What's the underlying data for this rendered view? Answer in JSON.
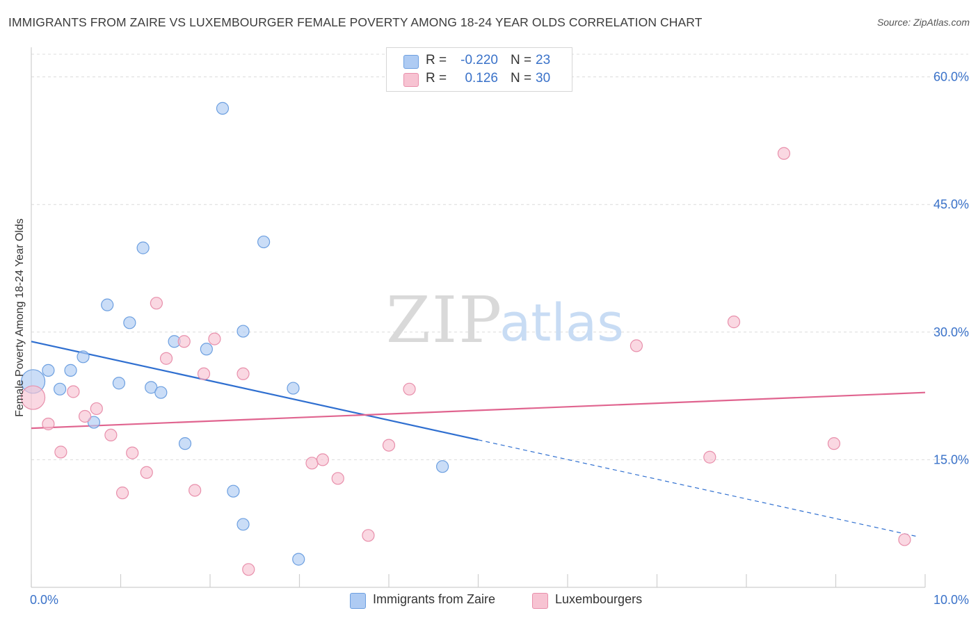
{
  "title": "IMMIGRANTS FROM ZAIRE VS LUXEMBOURGER FEMALE POVERTY AMONG 18-24 YEAR OLDS CORRELATION CHART",
  "source": "Source: ZipAtlas.com",
  "watermark": {
    "zip": "ZIP",
    "atlas": "atlas"
  },
  "legend": {
    "rows": [
      {
        "r_label": "R =",
        "r_value": "-0.220",
        "n_label": "N =",
        "n_value": "23"
      },
      {
        "r_label": "R =",
        "r_value": "0.126",
        "n_label": "N =",
        "n_value": "30"
      }
    ]
  },
  "bottom_legend": [
    "Immigrants from Zaire",
    "Luxembourgers"
  ],
  "colors": {
    "blue_fill": "#aecbf3",
    "blue_stroke": "#6c9fe0",
    "blue_line": "#2f6fd0",
    "pink_fill": "#f7c3d2",
    "pink_stroke": "#e88fab",
    "pink_line": "#e0648f",
    "tick_color": "#3a72c9",
    "grid": "#dcdcdc"
  },
  "chart_data": {
    "type": "scatter",
    "title": "IMMIGRANTS FROM ZAIRE VS LUXEMBOURGER FEMALE POVERTY AMONG 18-24 YEAR OLDS CORRELATION CHART",
    "xlabel": "",
    "ylabel": "Female Poverty Among 18-24 Year Olds",
    "xlim": [
      0,
      10
    ],
    "ylim": [
      0,
      62.5
    ],
    "x_tick_labels": [
      {
        "value": 0,
        "label": "0.0%"
      },
      {
        "value": 10,
        "label": "10.0%"
      }
    ],
    "y_tick_labels": [
      {
        "value": 15,
        "label": "15.0%"
      },
      {
        "value": 30,
        "label": "30.0%"
      },
      {
        "value": 45,
        "label": "45.0%"
      },
      {
        "value": 60,
        "label": "60.0%"
      }
    ],
    "series": [
      {
        "name": "Immigrants from Zaire",
        "color": "blue",
        "points": [
          {
            "x": 0.02,
            "y": 24.2,
            "size": "large"
          },
          {
            "x": 0.19,
            "y": 25.5
          },
          {
            "x": 0.32,
            "y": 23.3
          },
          {
            "x": 0.44,
            "y": 25.5
          },
          {
            "x": 0.58,
            "y": 27.1
          },
          {
            "x": 0.7,
            "y": 19.4
          },
          {
            "x": 0.85,
            "y": 33.2
          },
          {
            "x": 0.98,
            "y": 24.0
          },
          {
            "x": 1.1,
            "y": 31.1
          },
          {
            "x": 1.25,
            "y": 39.9
          },
          {
            "x": 1.34,
            "y": 23.5
          },
          {
            "x": 1.45,
            "y": 22.9
          },
          {
            "x": 1.6,
            "y": 28.9
          },
          {
            "x": 1.72,
            "y": 16.9
          },
          {
            "x": 1.96,
            "y": 28.0
          },
          {
            "x": 2.14,
            "y": 56.3
          },
          {
            "x": 2.26,
            "y": 11.3
          },
          {
            "x": 2.37,
            "y": 7.4
          },
          {
            "x": 2.37,
            "y": 30.1
          },
          {
            "x": 2.6,
            "y": 40.6
          },
          {
            "x": 2.93,
            "y": 23.4
          },
          {
            "x": 2.99,
            "y": 3.3
          },
          {
            "x": 4.6,
            "y": 14.2
          }
        ],
        "trend": {
          "x0": 0.0,
          "y0": 28.9,
          "x_solid_end": 5.0,
          "x1": 9.9,
          "y1": 6.0,
          "dashed_after_solid": true
        }
      },
      {
        "name": "Luxembourgers",
        "color": "pink",
        "points": [
          {
            "x": 0.02,
            "y": 22.3,
            "size": "large"
          },
          {
            "x": 0.19,
            "y": 19.2
          },
          {
            "x": 0.33,
            "y": 15.9
          },
          {
            "x": 0.47,
            "y": 23.0
          },
          {
            "x": 0.6,
            "y": 20.1
          },
          {
            "x": 0.73,
            "y": 21.0
          },
          {
            "x": 0.89,
            "y": 17.9
          },
          {
            "x": 1.02,
            "y": 11.1
          },
          {
            "x": 1.13,
            "y": 15.8
          },
          {
            "x": 1.29,
            "y": 13.5
          },
          {
            "x": 1.4,
            "y": 33.4
          },
          {
            "x": 1.51,
            "y": 26.9
          },
          {
            "x": 1.71,
            "y": 28.9
          },
          {
            "x": 1.83,
            "y": 11.4
          },
          {
            "x": 1.93,
            "y": 25.1
          },
          {
            "x": 2.05,
            "y": 29.2
          },
          {
            "x": 2.37,
            "y": 25.1
          },
          {
            "x": 2.43,
            "y": 2.1
          },
          {
            "x": 3.14,
            "y": 14.6
          },
          {
            "x": 3.26,
            "y": 15.0
          },
          {
            "x": 3.43,
            "y": 12.8
          },
          {
            "x": 3.77,
            "y": 6.1
          },
          {
            "x": 4.0,
            "y": 16.7
          },
          {
            "x": 4.23,
            "y": 23.3
          },
          {
            "x": 6.77,
            "y": 28.4
          },
          {
            "x": 7.59,
            "y": 15.3
          },
          {
            "x": 7.86,
            "y": 31.2
          },
          {
            "x": 8.42,
            "y": 51.0
          },
          {
            "x": 8.98,
            "y": 16.9
          },
          {
            "x": 9.77,
            "y": 5.6
          }
        ],
        "trend": {
          "x0": 0.0,
          "y0": 18.7,
          "x_solid_end": 10.0,
          "x1": 10.0,
          "y1": 22.9,
          "dashed_after_solid": false
        }
      }
    ]
  }
}
